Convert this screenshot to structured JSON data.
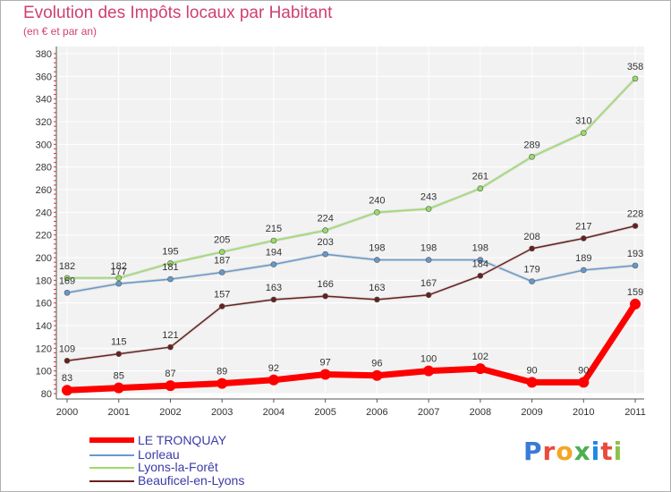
{
  "header": {
    "title": "Evolution des Impôts locaux par Habitant",
    "subtitle": "(en € et par an)"
  },
  "logo": {
    "text": "Proxiti"
  },
  "chart_data": {
    "type": "line",
    "title": "Evolution des Impôts locaux par Habitant",
    "subtitle": "(en € et par an)",
    "xlabel": "",
    "ylabel": "",
    "x": [
      "2000",
      "2001",
      "2002",
      "2003",
      "2004",
      "2005",
      "2006",
      "2007",
      "2008",
      "2009",
      "2010",
      "2011"
    ],
    "ylim": [
      80,
      380
    ],
    "yticks": [
      80,
      100,
      120,
      140,
      160,
      180,
      200,
      220,
      240,
      260,
      280,
      300,
      320,
      340,
      360,
      380
    ],
    "grid": true,
    "legend_position": "bottom-left",
    "series": [
      {
        "name": "LE TRONQUAY",
        "color": "#ff0000",
        "values": [
          83,
          85,
          87,
          89,
          92,
          97,
          96,
          100,
          102,
          90,
          90,
          159
        ]
      },
      {
        "name": "Lorleau",
        "color": "#6699cc",
        "values": [
          169,
          177,
          181,
          187,
          194,
          203,
          198,
          198,
          198,
          179,
          189,
          193
        ]
      },
      {
        "name": "Lyons-la-Forêt",
        "color": "#99dd66",
        "values": [
          182,
          182,
          195,
          205,
          215,
          224,
          240,
          243,
          261,
          289,
          310,
          358
        ]
      },
      {
        "name": "Beauficel-en-Lyons",
        "color": "#6a1f1f",
        "values": [
          109,
          115,
          121,
          157,
          163,
          166,
          163,
          167,
          184,
          208,
          217,
          228
        ]
      }
    ]
  }
}
